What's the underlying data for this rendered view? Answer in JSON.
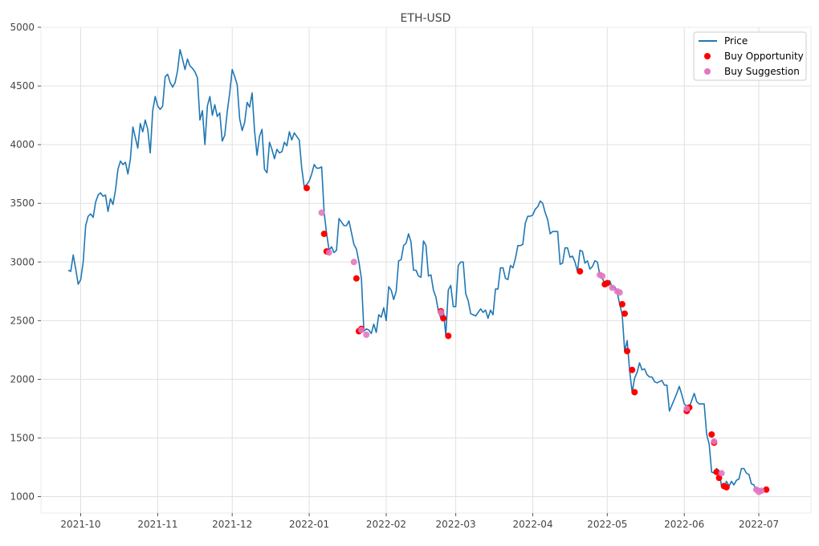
{
  "colors": {
    "price": "#1f77b4",
    "opportunity": "#ff0000",
    "suggestion": "#e377c2",
    "grid": "#e0e0e0",
    "frame": "#ebebeb"
  },
  "chart_data": {
    "type": "line",
    "title": "ETH-USD",
    "xlabel": "",
    "ylabel": "",
    "grid": true,
    "legend_position": "top-right",
    "xlim": [
      "2021-09-15",
      "2022-07-22"
    ],
    "ylim": [
      860,
      5000
    ],
    "x_ticks": [
      "2021-10-01",
      "2021-11-01",
      "2021-12-01",
      "2022-01-01",
      "2022-02-01",
      "2022-03-01",
      "2022-04-01",
      "2022-05-01",
      "2022-06-01",
      "2022-07-01"
    ],
    "x_tick_labels": [
      "2021-10",
      "2021-11",
      "2021-12",
      "2022-01",
      "2022-02",
      "2022-03",
      "2022-04",
      "2022-05",
      "2022-06",
      "2022-07"
    ],
    "y_ticks": [
      1000,
      1500,
      2000,
      2500,
      3000,
      3500,
      4000,
      4500,
      5000
    ],
    "y_tick_labels": [
      "1000",
      "1500",
      "2000",
      "2500",
      "3000",
      "3500",
      "4000",
      "4500",
      "5000"
    ],
    "legend": [
      "Price",
      "Buy Opportunity",
      "Buy Suggestion"
    ],
    "series": [
      {
        "name": "Price",
        "type": "line",
        "x": [
          "2021-09-26",
          "2021-09-27",
          "2021-09-28",
          "2021-09-29",
          "2021-09-30",
          "2021-10-01",
          "2021-10-02",
          "2021-10-03",
          "2021-10-04",
          "2021-10-05",
          "2021-10-06",
          "2021-10-07",
          "2021-10-08",
          "2021-10-09",
          "2021-10-10",
          "2021-10-11",
          "2021-10-12",
          "2021-10-13",
          "2021-10-14",
          "2021-10-15",
          "2021-10-16",
          "2021-10-17",
          "2021-10-18",
          "2021-10-19",
          "2021-10-20",
          "2021-10-21",
          "2021-10-22",
          "2021-10-23",
          "2021-10-24",
          "2021-10-25",
          "2021-10-26",
          "2021-10-27",
          "2021-10-28",
          "2021-10-29",
          "2021-10-30",
          "2021-10-31",
          "2021-11-01",
          "2021-11-02",
          "2021-11-03",
          "2021-11-04",
          "2021-11-05",
          "2021-11-06",
          "2021-11-07",
          "2021-11-08",
          "2021-11-09",
          "2021-11-10",
          "2021-11-11",
          "2021-11-12",
          "2021-11-13",
          "2021-11-14",
          "2021-11-15",
          "2021-11-16",
          "2021-11-17",
          "2021-11-18",
          "2021-11-19",
          "2021-11-20",
          "2021-11-21",
          "2021-11-22",
          "2021-11-23",
          "2021-11-24",
          "2021-11-25",
          "2021-11-26",
          "2021-11-27",
          "2021-11-28",
          "2021-11-29",
          "2021-11-30",
          "2021-12-01",
          "2021-12-02",
          "2021-12-03",
          "2021-12-04",
          "2021-12-05",
          "2021-12-06",
          "2021-12-07",
          "2021-12-08",
          "2021-12-09",
          "2021-12-10",
          "2021-12-11",
          "2021-12-12",
          "2021-12-13",
          "2021-12-14",
          "2021-12-15",
          "2021-12-16",
          "2021-12-17",
          "2021-12-18",
          "2021-12-19",
          "2021-12-20",
          "2021-12-21",
          "2021-12-22",
          "2021-12-23",
          "2021-12-24",
          "2021-12-25",
          "2021-12-26",
          "2021-12-27",
          "2021-12-28",
          "2021-12-29",
          "2021-12-30",
          "2021-12-31",
          "2022-01-01",
          "2022-01-02",
          "2022-01-03",
          "2022-01-04",
          "2022-01-05",
          "2022-01-06",
          "2022-01-07",
          "2022-01-08",
          "2022-01-09",
          "2022-01-10",
          "2022-01-11",
          "2022-01-12",
          "2022-01-13",
          "2022-01-14",
          "2022-01-15",
          "2022-01-16",
          "2022-01-17",
          "2022-01-18",
          "2022-01-19",
          "2022-01-20",
          "2022-01-21",
          "2022-01-22",
          "2022-01-23",
          "2022-01-24",
          "2022-01-25",
          "2022-01-26",
          "2022-01-27",
          "2022-01-28",
          "2022-01-29",
          "2022-01-30",
          "2022-01-31",
          "2022-02-01",
          "2022-02-02",
          "2022-02-03",
          "2022-02-04",
          "2022-02-05",
          "2022-02-06",
          "2022-02-07",
          "2022-02-08",
          "2022-02-09",
          "2022-02-10",
          "2022-02-11",
          "2022-02-12",
          "2022-02-13",
          "2022-02-14",
          "2022-02-15",
          "2022-02-16",
          "2022-02-17",
          "2022-02-18",
          "2022-02-19",
          "2022-02-20",
          "2022-02-21",
          "2022-02-22",
          "2022-02-23",
          "2022-02-24",
          "2022-02-25",
          "2022-02-26",
          "2022-02-27",
          "2022-02-28",
          "2022-03-01",
          "2022-03-02",
          "2022-03-03",
          "2022-03-04",
          "2022-03-05",
          "2022-03-06",
          "2022-03-07",
          "2022-03-08",
          "2022-03-09",
          "2022-03-10",
          "2022-03-11",
          "2022-03-12",
          "2022-03-13",
          "2022-03-14",
          "2022-03-15",
          "2022-03-16",
          "2022-03-17",
          "2022-03-18",
          "2022-03-19",
          "2022-03-20",
          "2022-03-21",
          "2022-03-22",
          "2022-03-23",
          "2022-03-24",
          "2022-03-25",
          "2022-03-26",
          "2022-03-27",
          "2022-03-28",
          "2022-03-29",
          "2022-03-30",
          "2022-03-31",
          "2022-04-01",
          "2022-04-02",
          "2022-04-03",
          "2022-04-04",
          "2022-04-05",
          "2022-04-06",
          "2022-04-07",
          "2022-04-08",
          "2022-04-09",
          "2022-04-10",
          "2022-04-11",
          "2022-04-12",
          "2022-04-13",
          "2022-04-14",
          "2022-04-15",
          "2022-04-16",
          "2022-04-17",
          "2022-04-18",
          "2022-04-19",
          "2022-04-20",
          "2022-04-21",
          "2022-04-22",
          "2022-04-23",
          "2022-04-24",
          "2022-04-25",
          "2022-04-26",
          "2022-04-27",
          "2022-04-28",
          "2022-04-29",
          "2022-04-30",
          "2022-05-01",
          "2022-05-02",
          "2022-05-03",
          "2022-05-04",
          "2022-05-05",
          "2022-05-06",
          "2022-05-07",
          "2022-05-08",
          "2022-05-09",
          "2022-05-10",
          "2022-05-11",
          "2022-05-12",
          "2022-05-13",
          "2022-05-14",
          "2022-05-15",
          "2022-05-16",
          "2022-05-17",
          "2022-05-18",
          "2022-05-19",
          "2022-05-20",
          "2022-05-21",
          "2022-05-22",
          "2022-05-23",
          "2022-05-24",
          "2022-05-25",
          "2022-05-26",
          "2022-05-27",
          "2022-05-28",
          "2022-05-29",
          "2022-05-30",
          "2022-05-31",
          "2022-06-01",
          "2022-06-02",
          "2022-06-03",
          "2022-06-04",
          "2022-06-05",
          "2022-06-06",
          "2022-06-07",
          "2022-06-08",
          "2022-06-09",
          "2022-06-10",
          "2022-06-11",
          "2022-06-12",
          "2022-06-13",
          "2022-06-14",
          "2022-06-15",
          "2022-06-16",
          "2022-06-17",
          "2022-06-18",
          "2022-06-19",
          "2022-06-20",
          "2022-06-21",
          "2022-06-22",
          "2022-06-23",
          "2022-06-24",
          "2022-06-25",
          "2022-06-26",
          "2022-06-27",
          "2022-06-28",
          "2022-06-29",
          "2022-06-30",
          "2022-07-01",
          "2022-07-02",
          "2022-07-03",
          "2022-07-04"
        ],
        "y": [
          2930,
          2920,
          3060,
          2940,
          2810,
          2850,
          3000,
          3310,
          3390,
          3410,
          3380,
          3510,
          3570,
          3590,
          3560,
          3570,
          3430,
          3540,
          3490,
          3610,
          3790,
          3860,
          3830,
          3850,
          3750,
          3880,
          4150,
          4060,
          3970,
          4180,
          4110,
          4210,
          4130,
          3930,
          4290,
          4410,
          4330,
          4300,
          4330,
          4580,
          4600,
          4530,
          4490,
          4530,
          4630,
          4810,
          4730,
          4640,
          4730,
          4670,
          4650,
          4620,
          4570,
          4210,
          4290,
          4000,
          4330,
          4410,
          4250,
          4340,
          4240,
          4270,
          4030,
          4080,
          4280,
          4440,
          4640,
          4580,
          4510,
          4220,
          4120,
          4190,
          4360,
          4320,
          4440,
          4120,
          3910,
          4070,
          4130,
          3790,
          3760,
          4020,
          3960,
          3880,
          3960,
          3930,
          3940,
          4020,
          3990,
          4110,
          4040,
          4100,
          4070,
          4040,
          3800,
          3640,
          3660,
          3690,
          3750,
          3830,
          3800,
          3800,
          3810,
          3420,
          3240,
          3100,
          3130,
          3080,
          3100,
          3370,
          3340,
          3310,
          3310,
          3350,
          3250,
          3150,
          3110,
          3000,
          2860,
          2410,
          2430,
          2420,
          2390,
          2470,
          2400,
          2550,
          2530,
          2610,
          2500,
          2790,
          2760,
          2680,
          2750,
          3010,
          3020,
          3140,
          3160,
          3240,
          3170,
          2930,
          2930,
          2880,
          2870,
          3180,
          3140,
          2880,
          2890,
          2760,
          2700,
          2580,
          2520,
          2590,
          2370,
          2760,
          2800,
          2620,
          2620,
          2970,
          3000,
          3000,
          2730,
          2670,
          2560,
          2550,
          2540,
          2570,
          2600,
          2570,
          2590,
          2520,
          2590,
          2550,
          2770,
          2770,
          2950,
          2950,
          2860,
          2850,
          2970,
          2950,
          3030,
          3140,
          3140,
          3150,
          3330,
          3390,
          3390,
          3400,
          3450,
          3470,
          3520,
          3500,
          3420,
          3360,
          3240,
          3260,
          3260,
          3260,
          2980,
          2990,
          3120,
          3120,
          3040,
          3050,
          3000,
          2920,
          3100,
          3090,
          2990,
          3010,
          2940,
          2960,
          3010,
          3000,
          2890,
          2860,
          2820,
          2830,
          2840,
          2780,
          2790,
          2740,
          2640,
          2550,
          2240,
          2330,
          2070,
          1890,
          2010,
          2060,
          2140,
          2080,
          2090,
          2040,
          2020,
          2020,
          1980,
          1970,
          1980,
          1990,
          1950,
          1950,
          1730,
          1780,
          1830,
          1880,
          1940,
          1870,
          1790,
          1770,
          1760,
          1820,
          1880,
          1810,
          1790,
          1790,
          1790,
          1530,
          1450,
          1210,
          1200,
          1240,
          1220,
          1090,
          1080,
          1130,
          1090,
          1130,
          1100,
          1140,
          1150,
          1240,
          1240,
          1200,
          1190,
          1110,
          1100,
          1060,
          1070,
          1050,
          1060,
          1060
        ]
      },
      {
        "name": "Buy Opportunity",
        "type": "scatter",
        "x": [
          "2021-12-31",
          "2022-01-07",
          "2022-01-08",
          "2022-01-20",
          "2022-01-21",
          "2022-01-22",
          "2022-02-23",
          "2022-02-24",
          "2022-02-26",
          "2022-04-20",
          "2022-04-30",
          "2022-05-01",
          "2022-05-07",
          "2022-05-08",
          "2022-05-09",
          "2022-05-11",
          "2022-05-12",
          "2022-06-02",
          "2022-06-03",
          "2022-06-12",
          "2022-06-13",
          "2022-06-14",
          "2022-06-15",
          "2022-06-17",
          "2022-06-18",
          "2022-07-04"
        ],
        "y": [
          3630,
          3240,
          3090,
          2860,
          2410,
          2430,
          2580,
          2520,
          2370,
          2920,
          2810,
          2820,
          2640,
          2560,
          2240,
          2080,
          1890,
          1730,
          1760,
          1530,
          1460,
          1210,
          1160,
          1090,
          1080,
          1060
        ]
      },
      {
        "name": "Buy Suggestion",
        "type": "scatter",
        "x": [
          "2022-01-06",
          "2022-01-09",
          "2022-01-19",
          "2022-01-22",
          "2022-01-24",
          "2022-02-23",
          "2022-04-28",
          "2022-04-29",
          "2022-05-03",
          "2022-05-05",
          "2022-05-06",
          "2022-06-02",
          "2022-06-13",
          "2022-06-16",
          "2022-06-30",
          "2022-07-01",
          "2022-07-02"
        ],
        "y": [
          3420,
          3080,
          3000,
          2420,
          2380,
          2570,
          2890,
          2880,
          2780,
          2750,
          2740,
          1750,
          1470,
          1200,
          1060,
          1040,
          1050
        ]
      }
    ]
  }
}
